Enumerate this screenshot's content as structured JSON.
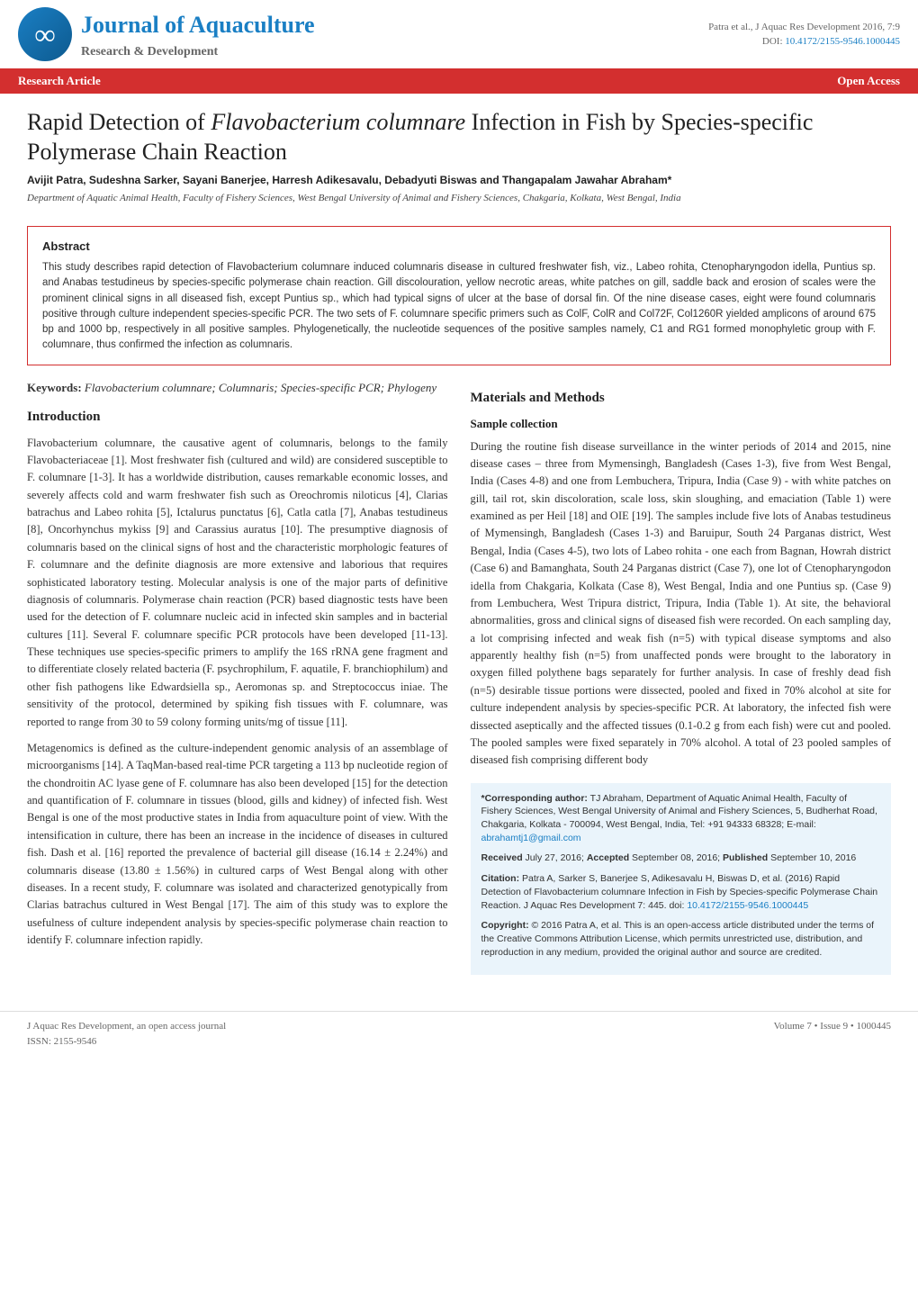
{
  "header": {
    "journal_name": "Journal of Aquaculture",
    "journal_subtitle": "Research & Development",
    "citation": "Patra et al., J Aquac Res Development 2016, 7:9",
    "doi_label": "DOI: ",
    "doi": "10.4172/2155-9546.1000445"
  },
  "research_bar": {
    "left": "Research Article",
    "right": "Open Access"
  },
  "article": {
    "title_pre": "Rapid Detection of ",
    "title_species": "Flavobacterium columnare",
    "title_post": " Infection in Fish by Species-specific Polymerase Chain Reaction",
    "authors": "Avijit Patra, Sudeshna Sarker, Sayani Banerjee, Harresh Adikesavalu, Debadyuti Biswas and Thangapalam Jawahar Abraham*",
    "affiliation": "Department of Aquatic Animal Health, Faculty of Fishery Sciences, West Bengal University of Animal and Fishery Sciences, Chakgaria, Kolkata, West Bengal, India"
  },
  "abstract": {
    "heading": "Abstract",
    "text": "This study describes rapid detection of Flavobacterium columnare induced columnaris disease in cultured freshwater fish, viz., Labeo rohita, Ctenopharyngodon idella, Puntius sp. and Anabas testudineus by species-specific polymerase chain reaction. Gill discolouration, yellow necrotic areas, white patches on gill, saddle back and erosion of scales were the prominent clinical signs in all diseased fish, except Puntius sp., which had typical signs of ulcer at the base of dorsal fin. Of the nine disease cases, eight were found columnaris positive through culture independent species-specific PCR. The two sets of F. columnare specific primers such as ColF, ColR and Col72F, Col1260R yielded amplicons of around 675 bp and 1000 bp, respectively in all positive samples. Phylogenetically, the nucleotide sequences of the positive samples namely, C1 and RG1 formed monophyletic group with F. columnare, thus confirmed the infection as columnaris."
  },
  "left_column": {
    "keywords_label": "Keywords: ",
    "keywords": "Flavobacterium columnare; Columnaris; Species-specific PCR; Phylogeny",
    "intro_heading": "Introduction",
    "intro_p1": "Flavobacterium columnare, the causative agent of columnaris, belongs to the family Flavobacteriaceae [1]. Most freshwater fish (cultured and wild) are considered susceptible to F. columnare [1-3]. It has a worldwide distribution, causes remarkable economic losses, and severely affects cold and warm freshwater fish such as Oreochromis niloticus [4], Clarias batrachus and Labeo rohita [5], Ictalurus punctatus [6], Catla catla [7], Anabas testudineus [8], Oncorhynchus mykiss [9] and Carassius auratus [10]. The presumptive diagnosis of columnaris based on the clinical signs of host and the characteristic morphologic features of F. columnare and the definite diagnosis are more extensive and laborious that requires sophisticated laboratory testing. Molecular analysis is one of the major parts of definitive diagnosis of columnaris. Polymerase chain reaction (PCR) based diagnostic tests have been used for the detection of F. columnare nucleic acid in infected skin samples and in bacterial cultures [11]. Several F. columnare specific PCR protocols have been developed [11-13]. These techniques use species-specific primers to amplify the 16S rRNA gene fragment and to differentiate closely related bacteria (F. psychrophilum, F. aquatile, F. branchiophilum) and other fish pathogens like Edwardsiella sp., Aeromonas sp. and Streptococcus iniae. The sensitivity of the protocol, determined by spiking fish tissues with F. columnare, was reported to range from 30 to 59 colony forming units/mg of tissue [11].",
    "intro_p2": "Metagenomics is defined as the culture-independent genomic analysis of an assemblage of microorganisms [14]. A TaqMan-based real-time PCR targeting a 113 bp nucleotide region of the chondroitin AC lyase gene of F. columnare has also been developed [15] for the detection and quantification of F. columnare in tissues (blood, gills and kidney) of infected fish. West Bengal is one of the most productive states in India from aquaculture point of view. With the intensification in culture, there has been an increase in the incidence of diseases in cultured fish. Dash et al. [16] reported the prevalence of bacterial gill disease (16.14 ± 2.24%) and columnaris disease (13.80 ± 1.56%) in cultured carps of West Bengal along with other diseases. In a recent study, F. columnare was isolated and characterized genotypically from Clarias batrachus cultured in West Bengal [17]. The aim of this study was to explore the usefulness of culture independent analysis by species-specific polymerase chain reaction to identify F. columnare infection rapidly."
  },
  "right_column": {
    "materials_heading": "Materials and Methods",
    "sample_heading": "Sample collection",
    "sample_p1": "During the routine fish disease surveillance in the winter periods of 2014 and 2015, nine disease cases – three from Mymensingh, Bangladesh (Cases 1-3), five from West Bengal, India (Cases 4-8) and one from Lembuchera, Tripura, India (Case 9) - with white patches on gill, tail rot, skin discoloration, scale loss, skin sloughing, and emaciation (Table 1) were examined as per Heil [18] and OIE [19]. The samples include five lots of Anabas testudineus of Mymensingh, Bangladesh (Cases 1-3) and Baruipur, South 24 Parganas district, West Bengal, India (Cases 4-5), two lots of Labeo rohita - one each from Bagnan, Howrah district (Case 6) and Bamanghata, South 24 Parganas district (Case 7), one lot of Ctenopharyngodon idella from Chakgaria, Kolkata (Case 8), West Bengal, India and one Puntius sp. (Case 9) from Lembuchera, West Tripura district, Tripura, India (Table 1). At site, the behavioral abnormalities, gross and clinical signs of diseased fish were recorded. On each sampling day, a lot comprising infected and weak fish (n=5) with typical disease symptoms and also apparently healthy fish (n=5) from unaffected ponds were brought to the laboratory in oxygen filled polythene bags separately for further analysis. In case of freshly dead fish (n=5) desirable tissue portions were dissected, pooled and fixed in 70% alcohol at site for culture independent analysis by species-specific PCR. At laboratory, the infected fish were dissected aseptically and the affected tissues (0.1-0.2 g from each fish) were cut and pooled. The pooled samples were fixed separately in 70% alcohol. A total of 23 pooled samples of diseased fish comprising different body"
  },
  "corresponding": {
    "author_label": "*Corresponding author:",
    "author_text": " TJ Abraham, Department of Aquatic Animal Health, Faculty of Fishery Sciences, West Bengal University of Animal and Fishery Sciences, 5, Budherhat Road, Chakgaria, Kolkata - 700094, West Bengal, India, Tel: +91 94333 68328; E-mail: ",
    "email": "abrahamtj1@gmail.com",
    "received_label": "Received",
    "received": " July 27, 2016; ",
    "accepted_label": "Accepted",
    "accepted": " September 08, 2016; ",
    "published_label": "Published",
    "published": " September 10, 2016",
    "citation_label": "Citation:",
    "citation_text": " Patra A, Sarker S, Banerjee S, Adikesavalu H, Biswas D, et al. (2016) Rapid Detection of Flavobacterium columnare Infection in Fish by Species-specific Polymerase Chain Reaction. J Aquac Res Development 7: 445. doi: ",
    "citation_doi": "10.4172/2155-9546.1000445",
    "copyright_label": "Copyright:",
    "copyright_text": " © 2016 Patra A, et al. This is an open-access article distributed under the terms of the Creative Commons Attribution License, which permits unrestricted use, distribution, and reproduction in any medium, provided the original author and source are credited."
  },
  "footer": {
    "left_line1": "J Aquac Res Development, an open access journal",
    "left_line2": "ISSN: 2155-9546",
    "right": "Volume 7 • Issue 9 • 1000445"
  },
  "colors": {
    "brand_blue": "#1a7fc4",
    "brand_red": "#d32f2f",
    "box_bg": "#eaf4fb"
  }
}
